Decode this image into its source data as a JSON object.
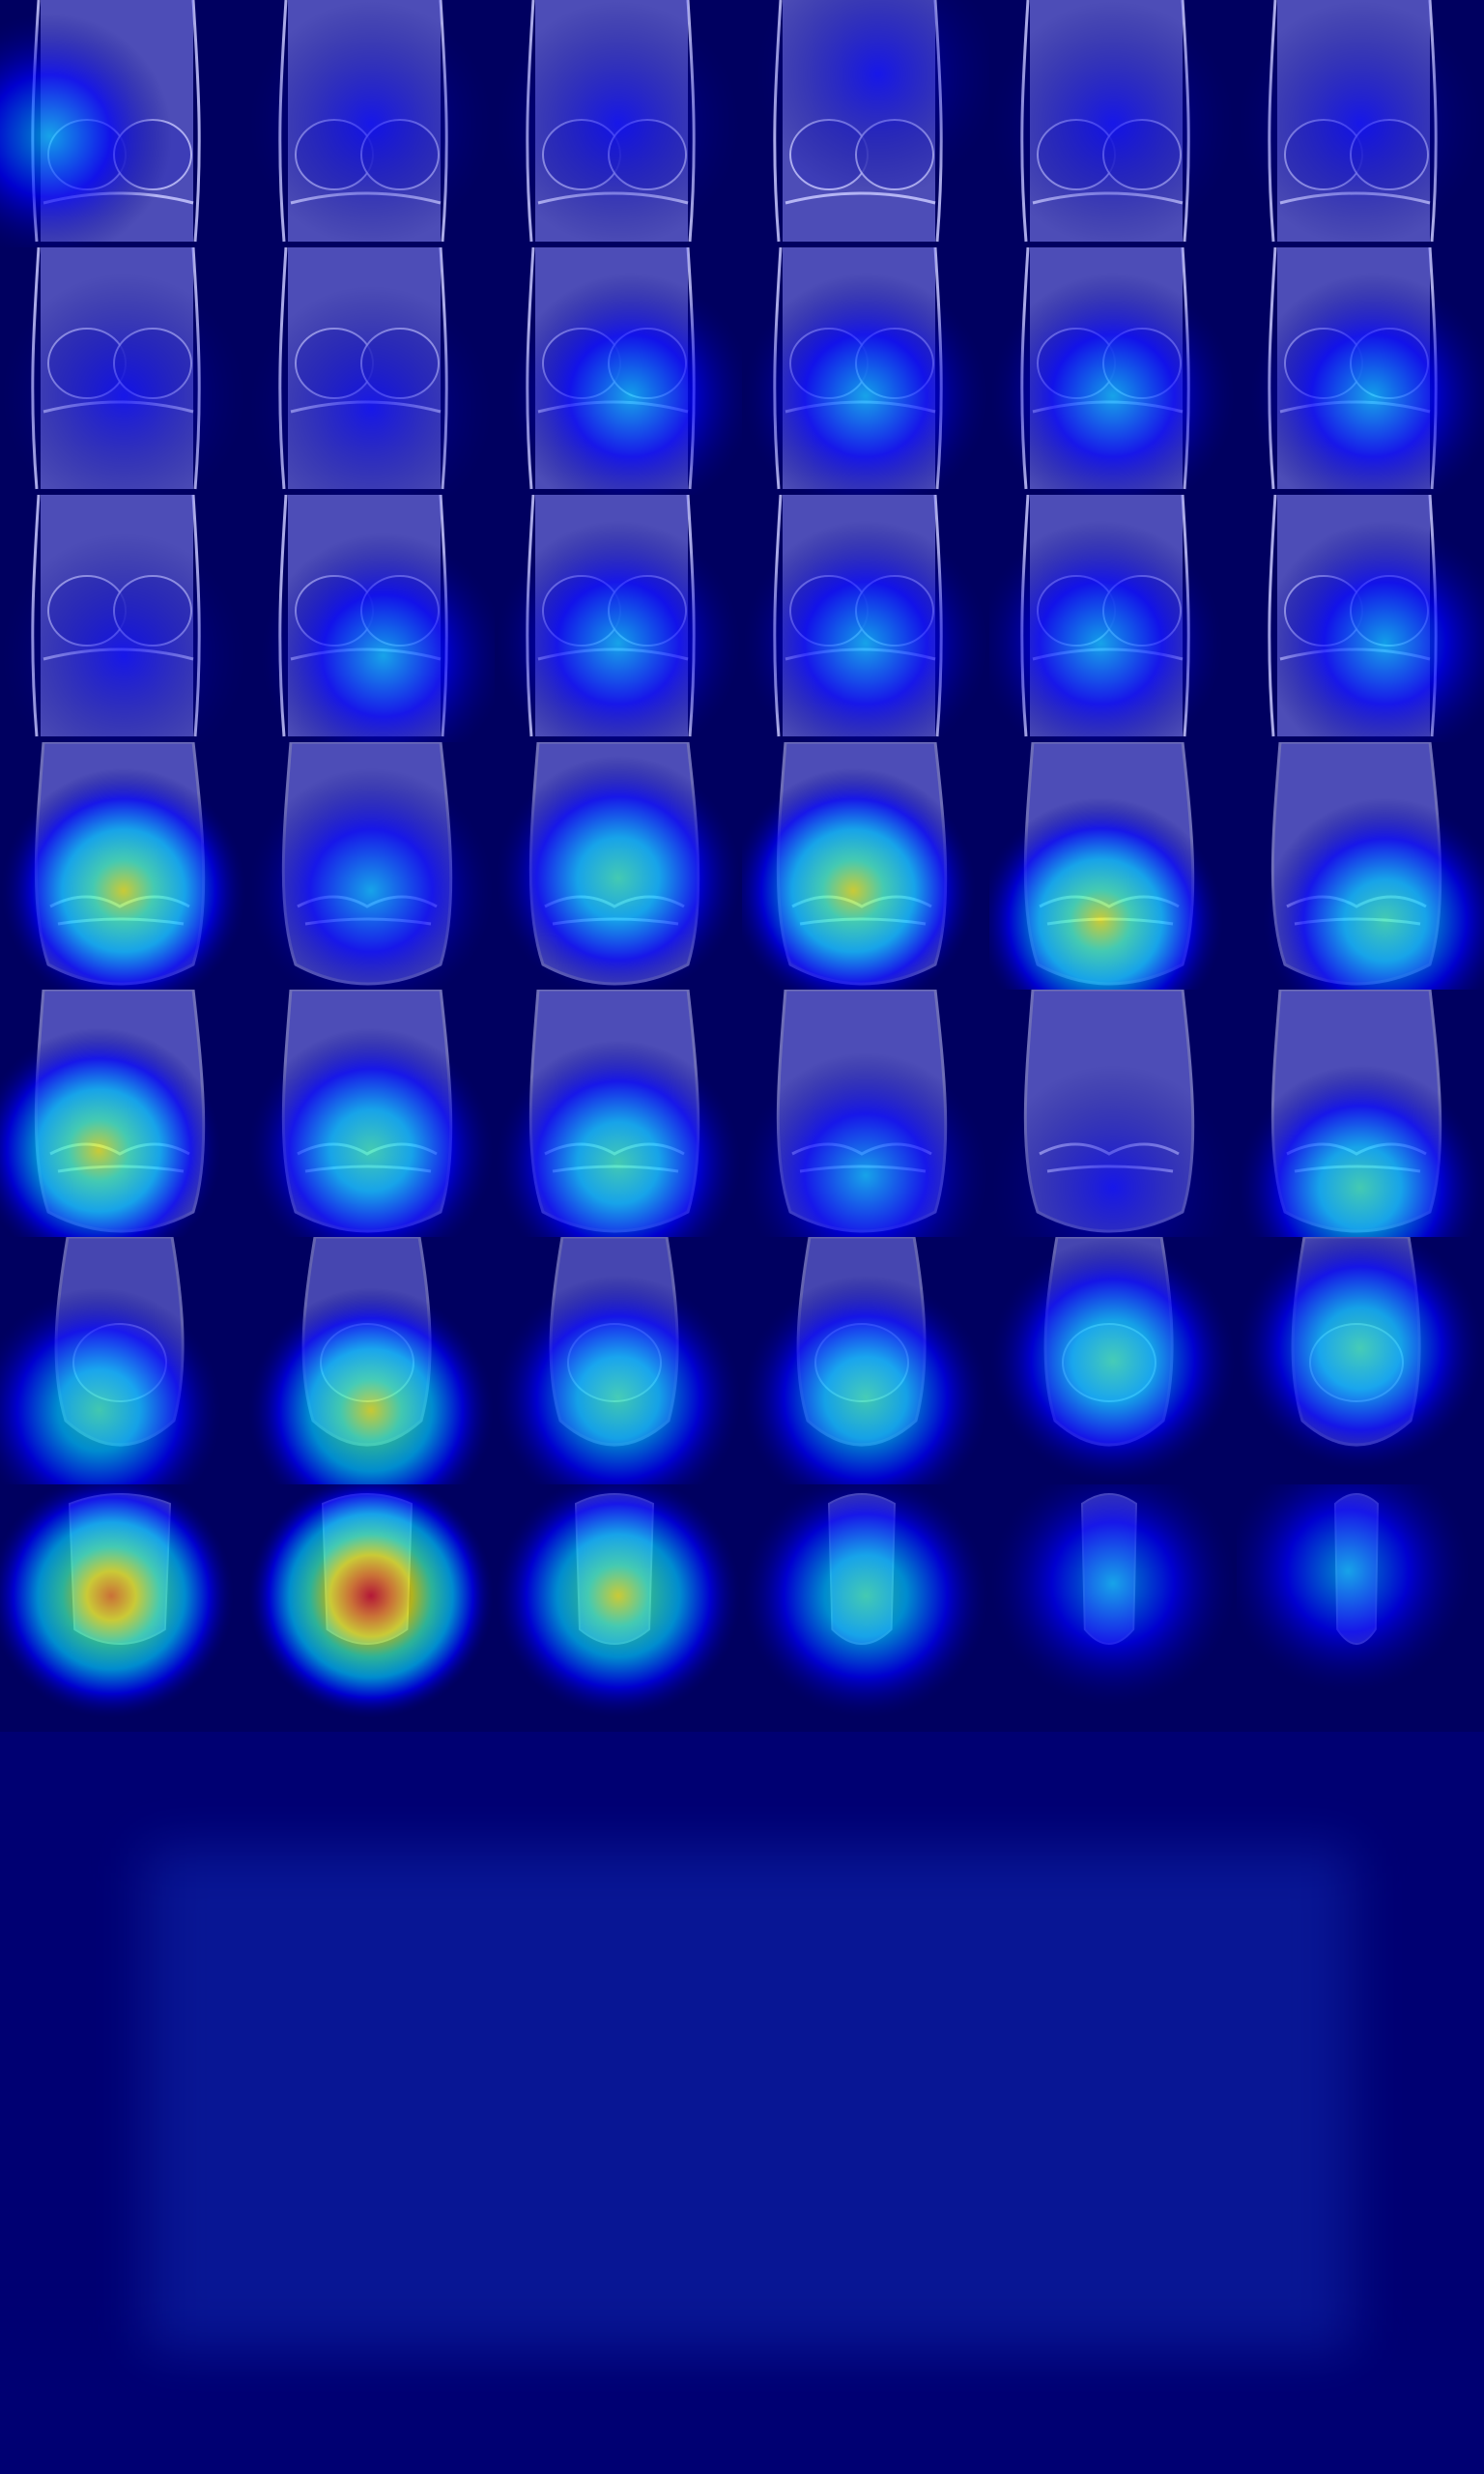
{
  "colormap": {
    "name": "jet",
    "stops": [
      "#00007f",
      "#0000ff",
      "#00c8ff",
      "#40ffb0",
      "#ffff00",
      "#ff8000",
      "#e00000"
    ]
  },
  "colors": {
    "background": "#00006e",
    "tissue": "#8c8cff",
    "bone_edge": "#c8c8ff"
  },
  "mosaic": {
    "columns": 6,
    "rows": 7,
    "tiles": [
      {
        "view": "posterior",
        "activation": 0.25,
        "hot_x": 0.2,
        "hot_y": 0.55
      },
      {
        "view": "posterior",
        "activation": 0.15,
        "hot_x": 0.5,
        "hot_y": 0.5
      },
      {
        "view": "posterior",
        "activation": 0.15,
        "hot_x": 0.5,
        "hot_y": 0.5
      },
      {
        "view": "posterior",
        "activation": 0.2,
        "hot_x": 0.55,
        "hot_y": 0.3
      },
      {
        "view": "posterior",
        "activation": 0.15,
        "hot_x": 0.5,
        "hot_y": 0.5
      },
      {
        "view": "posterior",
        "activation": 0.1,
        "hot_x": 0.5,
        "hot_y": 0.5
      },
      {
        "view": "condyles",
        "activation": 0.15,
        "hot_x": 0.5,
        "hot_y": 0.6
      },
      {
        "view": "condyles",
        "activation": 0.2,
        "hot_x": 0.5,
        "hot_y": 0.65
      },
      {
        "view": "condyles",
        "activation": 0.25,
        "hot_x": 0.55,
        "hot_y": 0.6
      },
      {
        "view": "condyles",
        "activation": 0.25,
        "hot_x": 0.5,
        "hot_y": 0.6
      },
      {
        "view": "condyles",
        "activation": 0.3,
        "hot_x": 0.5,
        "hot_y": 0.6
      },
      {
        "view": "condyles",
        "activation": 0.25,
        "hot_x": 0.55,
        "hot_y": 0.6
      },
      {
        "view": "notch",
        "activation": 0.2,
        "hot_x": 0.5,
        "hot_y": 0.65
      },
      {
        "view": "notch",
        "activation": 0.3,
        "hot_x": 0.55,
        "hot_y": 0.65
      },
      {
        "view": "notch",
        "activation": 0.35,
        "hot_x": 0.5,
        "hot_y": 0.6
      },
      {
        "view": "notch",
        "activation": 0.4,
        "hot_x": 0.5,
        "hot_y": 0.6
      },
      {
        "view": "notch",
        "activation": 0.35,
        "hot_x": 0.45,
        "hot_y": 0.6
      },
      {
        "view": "notch",
        "activation": 0.3,
        "hot_x": 0.6,
        "hot_y": 0.6
      },
      {
        "view": "joint",
        "activation": 0.6,
        "hot_x": 0.5,
        "hot_y": 0.6
      },
      {
        "view": "joint",
        "activation": 0.35,
        "hot_x": 0.5,
        "hot_y": 0.6
      },
      {
        "view": "joint",
        "activation": 0.5,
        "hot_x": 0.5,
        "hot_y": 0.55
      },
      {
        "view": "joint",
        "activation": 0.6,
        "hot_x": 0.45,
        "hot_y": 0.6
      },
      {
        "view": "joint",
        "activation": 0.7,
        "hot_x": 0.45,
        "hot_y": 0.72
      },
      {
        "view": "joint",
        "activation": 0.45,
        "hot_x": 0.6,
        "hot_y": 0.72
      },
      {
        "view": "anterior",
        "activation": 0.6,
        "hot_x": 0.4,
        "hot_y": 0.65
      },
      {
        "view": "anterior",
        "activation": 0.55,
        "hot_x": 0.5,
        "hot_y": 0.65
      },
      {
        "view": "anterior",
        "activation": 0.45,
        "hot_x": 0.5,
        "hot_y": 0.7
      },
      {
        "view": "anterior",
        "activation": 0.4,
        "hot_x": 0.5,
        "hot_y": 0.75
      },
      {
        "view": "anterior",
        "activation": 0.2,
        "hot_x": 0.5,
        "hot_y": 0.8
      },
      {
        "view": "anterior",
        "activation": 0.45,
        "hot_x": 0.5,
        "hot_y": 0.8
      },
      {
        "view": "patella-high",
        "activation": 0.5,
        "hot_x": 0.4,
        "hot_y": 0.7
      },
      {
        "view": "patella-high",
        "activation": 0.6,
        "hot_x": 0.5,
        "hot_y": 0.7
      },
      {
        "view": "patella-high",
        "activation": 0.5,
        "hot_x": 0.5,
        "hot_y": 0.65
      },
      {
        "view": "patella-high",
        "activation": 0.45,
        "hot_x": 0.5,
        "hot_y": 0.65
      },
      {
        "view": "patella-high",
        "activation": 0.45,
        "hot_x": 0.5,
        "hot_y": 0.5
      },
      {
        "view": "patella-high",
        "activation": 0.5,
        "hot_x": 0.5,
        "hot_y": 0.45
      },
      {
        "view": "patella",
        "activation": 0.8,
        "hot_x": 0.45,
        "hot_y": 0.45
      },
      {
        "view": "patella",
        "activation": 0.95,
        "hot_x": 0.5,
        "hot_y": 0.45
      },
      {
        "view": "patella",
        "activation": 0.65,
        "hot_x": 0.5,
        "hot_y": 0.45
      },
      {
        "view": "patella",
        "activation": 0.45,
        "hot_x": 0.5,
        "hot_y": 0.45
      },
      {
        "view": "patella",
        "activation": 0.4,
        "hot_x": 0.5,
        "hot_y": 0.4
      },
      {
        "view": "patella",
        "activation": 0.3,
        "hot_x": 0.45,
        "hot_y": 0.35
      }
    ]
  }
}
